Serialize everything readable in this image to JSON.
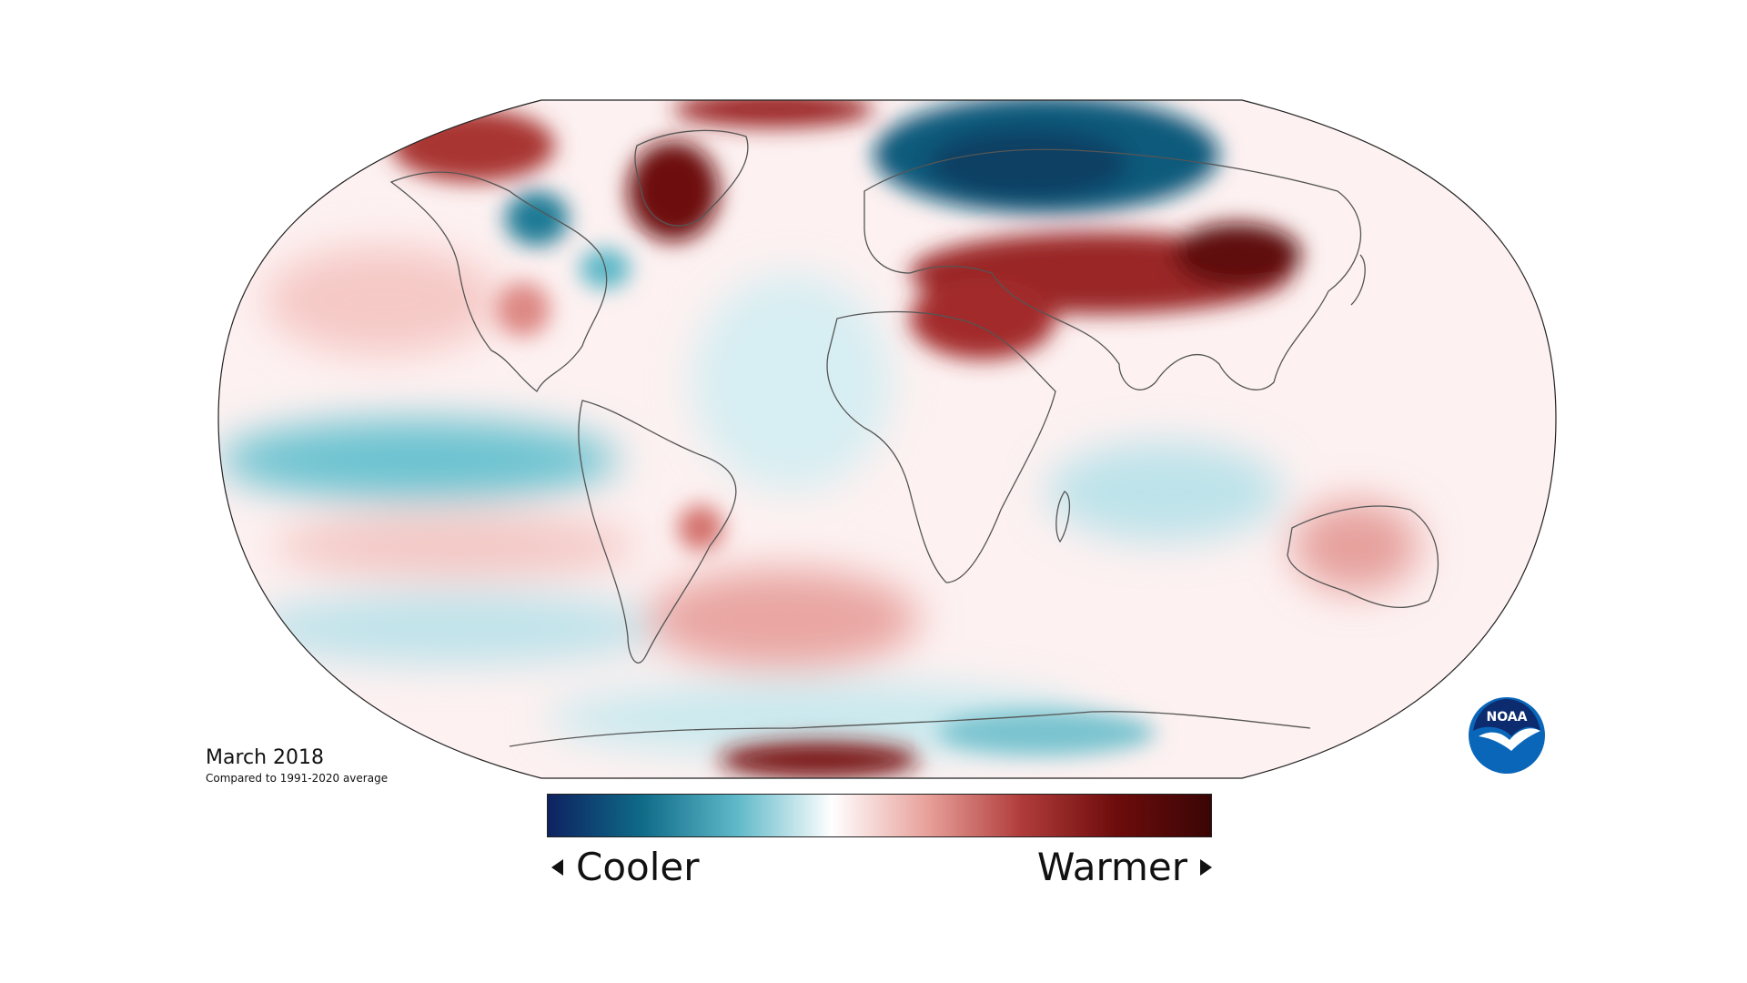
{
  "caption": {
    "title": "March 2018",
    "subtitle": "Compared to 1991-2020 average"
  },
  "legend": {
    "cooler_label": "Cooler",
    "warmer_label": "Warmer",
    "gradient_colors": [
      "#0e2260",
      "#0f6b88",
      "#5fb9c9",
      "#ffffff",
      "#e8a19b",
      "#b03c3a",
      "#6d0c0c",
      "#3a0505"
    ]
  },
  "logo": {
    "text": "NOAA",
    "colors": {
      "outer": "#0a66b9",
      "inner": "#0d2c6f",
      "bird": "#ffffff"
    }
  },
  "map_colors": {
    "ocean_base": "#fbeaea",
    "cool_strong": "#0f5b7a",
    "cool": "#4fb1c2",
    "cool_light": "#bfe5ea",
    "warm_light": "#f2c4c1",
    "warm": "#c9504d",
    "warm_strong": "#6d0c0c",
    "coast": "#555555"
  }
}
